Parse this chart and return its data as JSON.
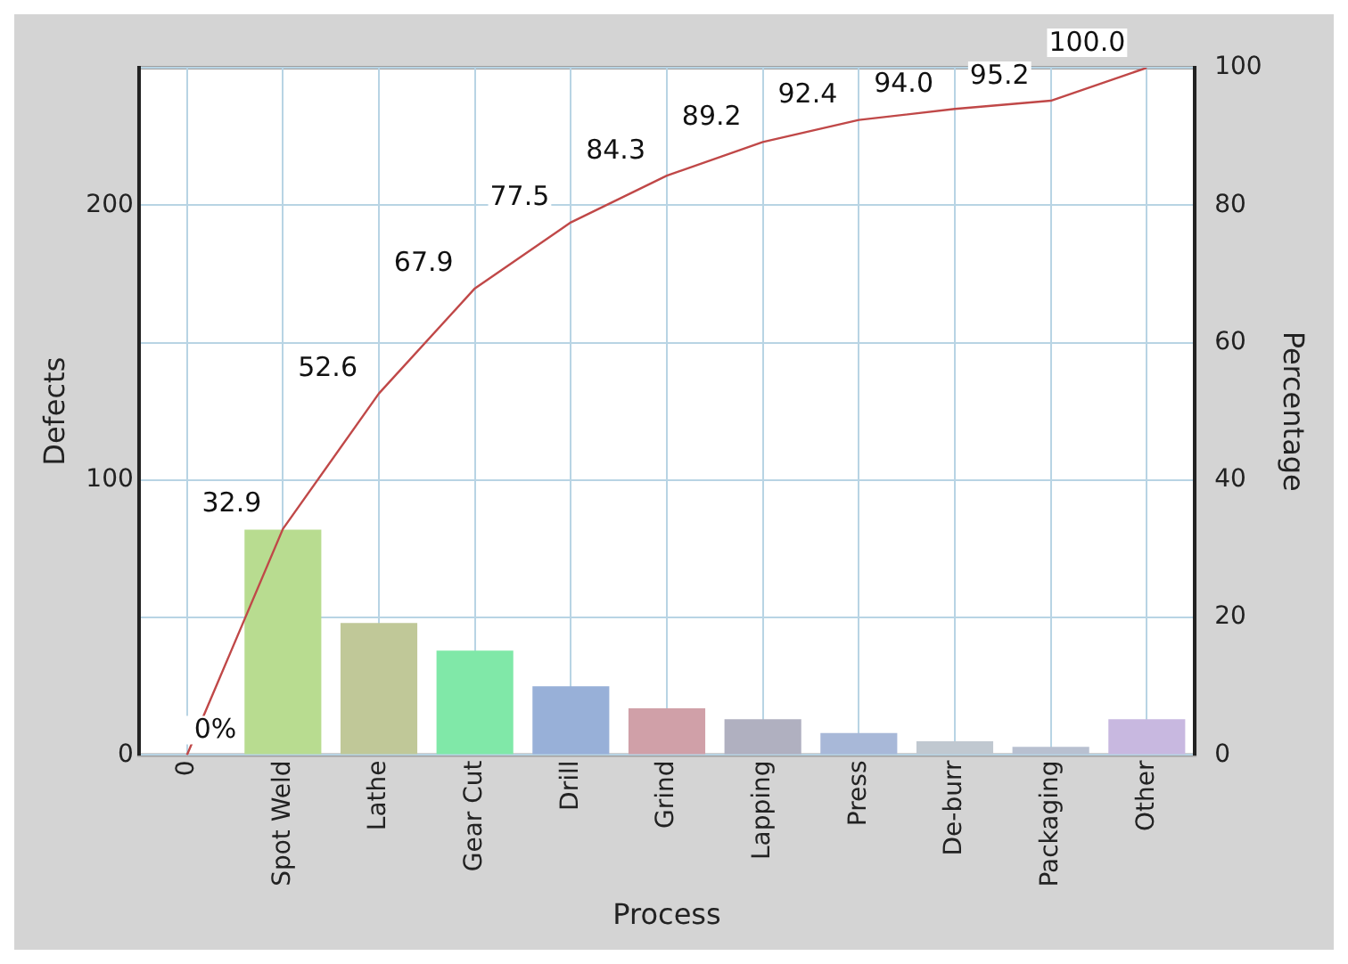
{
  "chart_data": {
    "type": "bar",
    "xlabel": "Process",
    "ylabel": "Defects",
    "y2label": "Percentage",
    "categories": [
      "0",
      "Spot Weld",
      "Lathe",
      "Gear Cut",
      "Drill",
      "Grind",
      "Lapping",
      "Press",
      "De-burr",
      "Packaging",
      "Other"
    ],
    "series": [
      {
        "colors": [
          null,
          "#b8dc90",
          "#c0c898",
          "#80e8a8",
          "#98b0d8",
          "#d0a0a8",
          "#b0b0c0",
          "#a8b8d8",
          "#c0c8d0",
          "#b8c0d0",
          "#c8b8e0"
        ],
        "values": [
          null,
          82,
          48,
          38,
          25,
          17,
          13,
          8,
          5,
          3,
          13
        ]
      },
      {
        "type": "line",
        "axis": "y2",
        "color": "#c04848",
        "marker": "none",
        "values": [
          0,
          32.9,
          52.6,
          67.9,
          77.5,
          84.3,
          89.2,
          92.4,
          94.0,
          95.2,
          100.0
        ],
        "value_labels": [
          "0%",
          "32.9",
          "52.6",
          "67.9",
          "77.5",
          "84.3",
          "89.2",
          "92.4",
          "94.0",
          "95.2",
          "100.0"
        ]
      }
    ],
    "ylim": [
      0,
      250
    ],
    "yticks": [
      0,
      {
        "value": 50,
        "label": null
      },
      100,
      {
        "value": 150,
        "label": null
      },
      200,
      {
        "value": 250,
        "label": null
      }
    ],
    "y2lim": [
      0,
      100
    ],
    "y2ticks": [
      0,
      20,
      40,
      60,
      80,
      100
    ],
    "grid": true,
    "legend": false
  }
}
